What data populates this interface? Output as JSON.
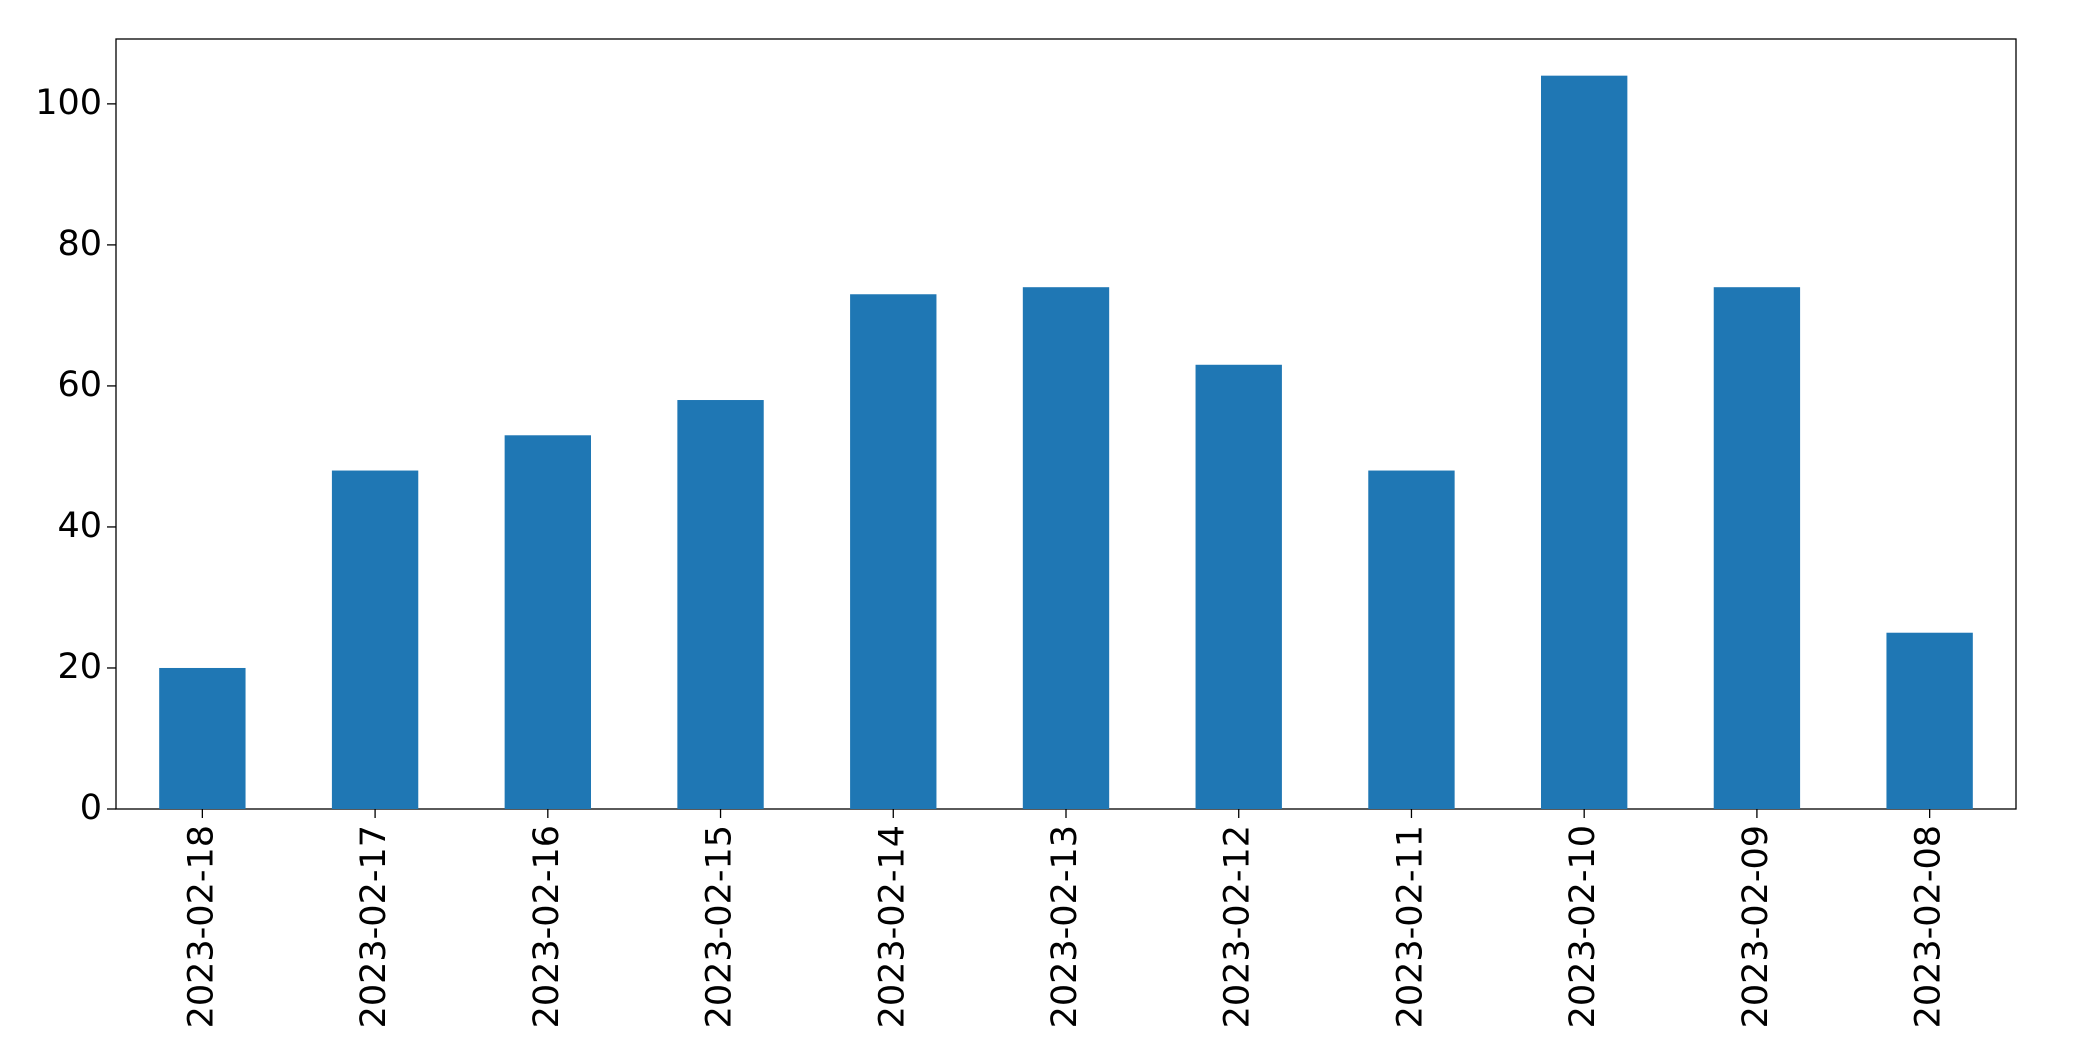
{
  "chart_data": {
    "type": "bar",
    "categories": [
      "2023-02-18",
      "2023-02-17",
      "2023-02-16",
      "2023-02-15",
      "2023-02-14",
      "2023-02-13",
      "2023-02-12",
      "2023-02-11",
      "2023-02-10",
      "2023-02-09",
      "2023-02-08"
    ],
    "values": [
      20,
      48,
      53,
      58,
      73,
      74,
      63,
      48,
      104,
      74,
      25
    ],
    "color": "#1f77b4",
    "ylim": [
      0,
      109.2
    ],
    "yticks": [
      0,
      20,
      40,
      60,
      80,
      100
    ],
    "grid": false
  }
}
